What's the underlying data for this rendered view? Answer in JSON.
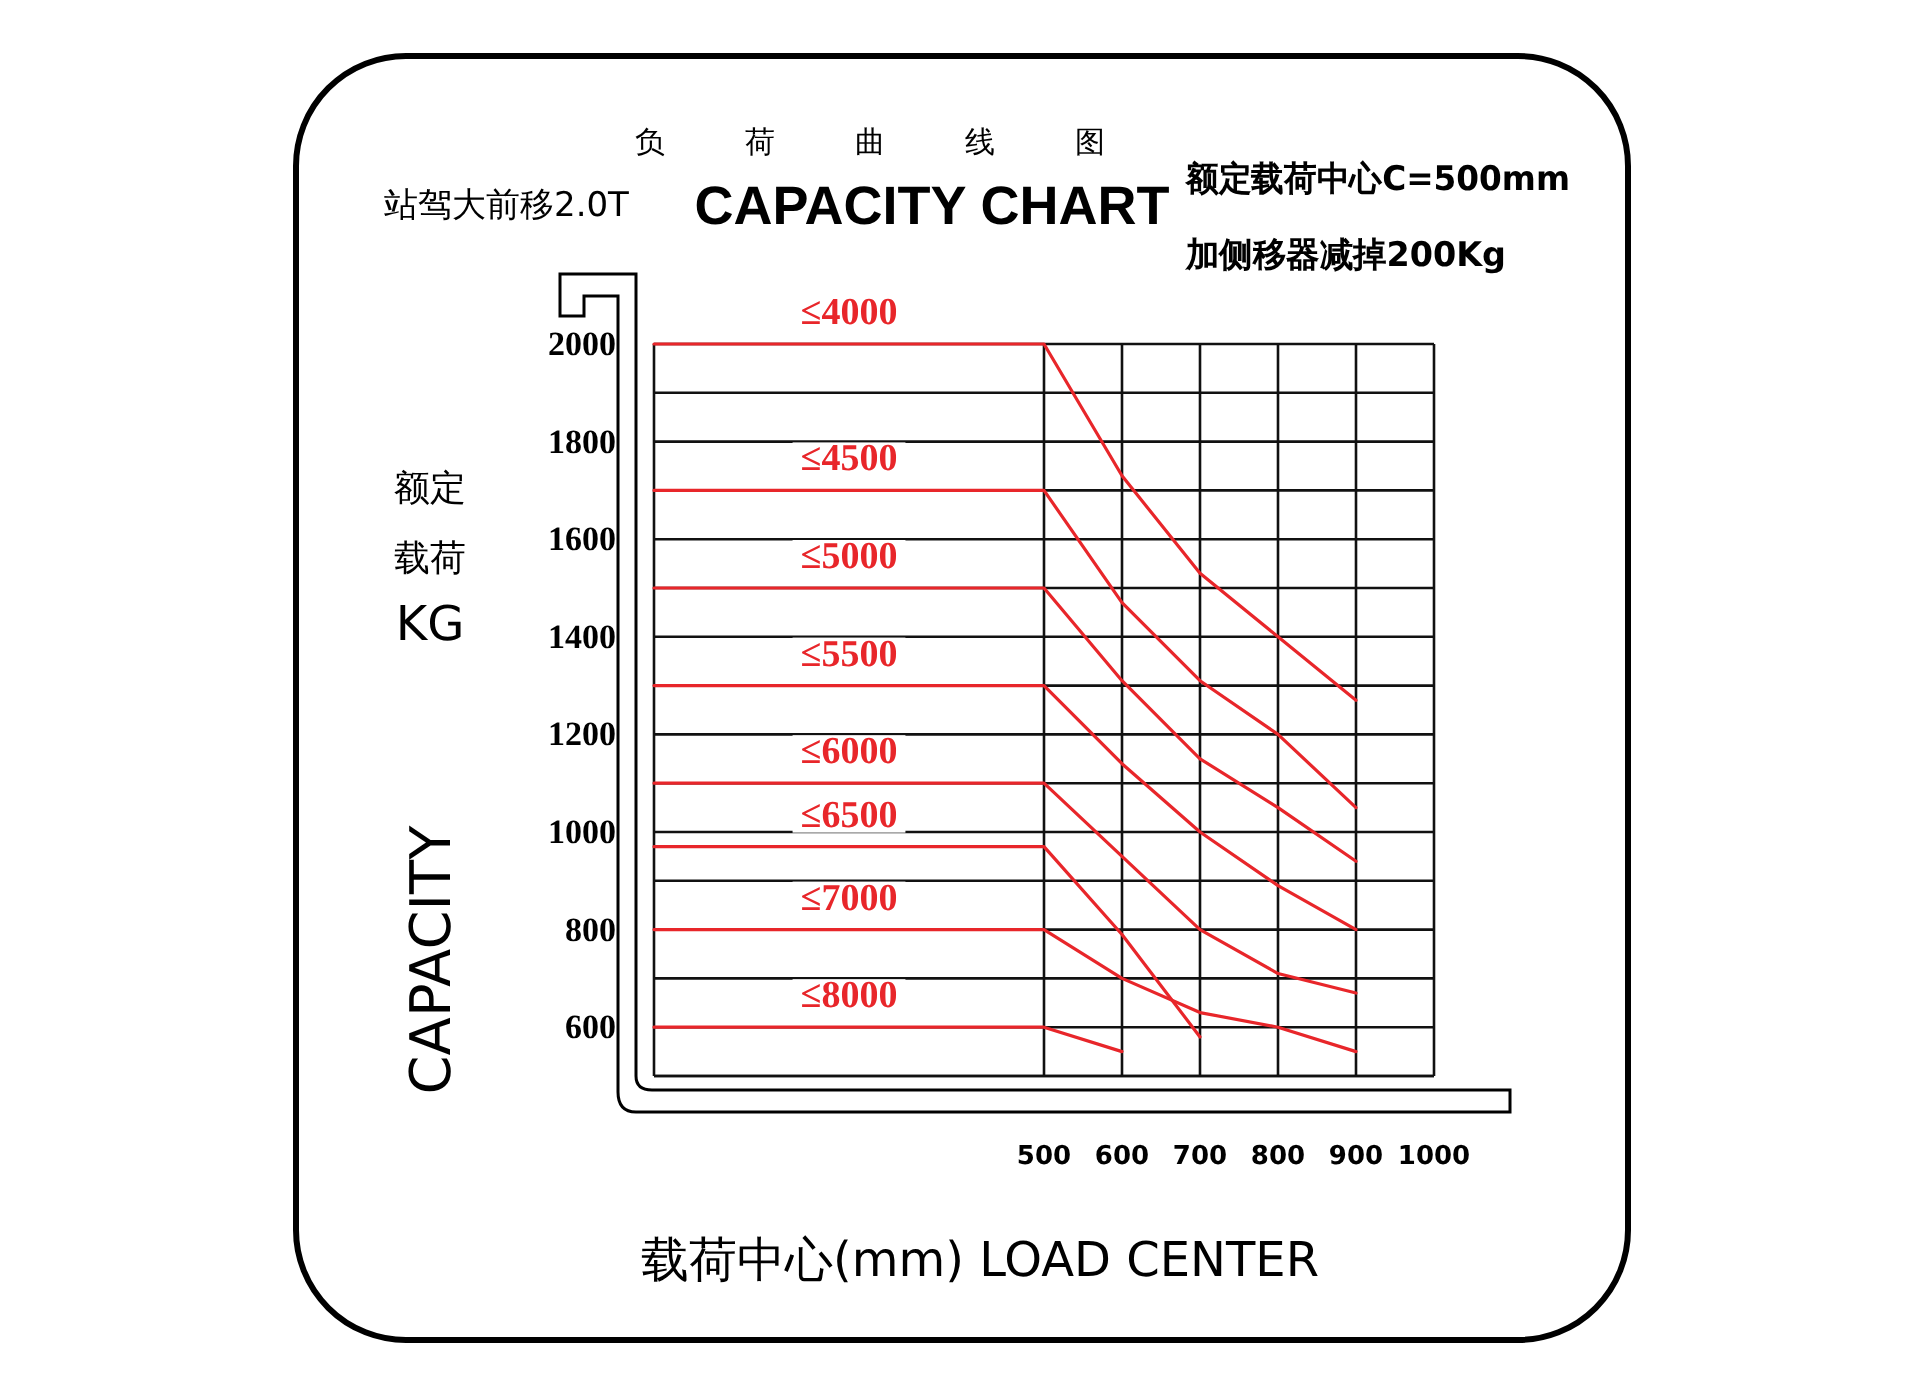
{
  "chart_data": {
    "type": "line",
    "title": "CAPACITY CHART",
    "subtitle": "负荷曲线图",
    "xlabel": "载荷中心(mm) LOAD CENTER",
    "ylabel": "额定载荷KG",
    "annotations": [
      "站驾大前移2.0T",
      "额定载荷中心C=500mm",
      "加侧移器减掉200Kg",
      "CAPACITY"
    ],
    "x": [
      0,
      500,
      600,
      700,
      800,
      900
    ],
    "xlim": [
      0,
      1000
    ],
    "xticks": [
      500,
      600,
      700,
      800,
      900,
      1000
    ],
    "ylim": [
      500,
      2000
    ],
    "yticks": [
      {
        "value": 500,
        "label": null
      },
      600,
      {
        "value": 700,
        "label": null
      },
      800,
      {
        "value": 900,
        "label": null
      },
      1000,
      {
        "value": 1100,
        "label": null
      },
      1200,
      {
        "value": 1300,
        "label": null
      },
      1400,
      {
        "value": 1500,
        "label": null
      },
      1600,
      {
        "value": 1700,
        "label": null
      },
      1800,
      {
        "value": 1900,
        "label": null
      },
      2000
    ],
    "grid": true,
    "marker": "none",
    "line_style": "solid",
    "series": [
      {
        "name": "≤4000",
        "color": "#e8262a",
        "values": [
          2000,
          2000,
          1730,
          1530,
          1400,
          1270
        ]
      },
      {
        "name": "≤4500",
        "color": "#e8262a",
        "values": [
          1700,
          1700,
          1470,
          1310,
          1200,
          1050
        ]
      },
      {
        "name": "≤5000",
        "color": "#e8262a",
        "values": [
          1500,
          1500,
          1310,
          1150,
          1050,
          940
        ]
      },
      {
        "name": "≤5500",
        "color": "#e8262a",
        "values": [
          1300,
          1300,
          1140,
          1000,
          890,
          800
        ]
      },
      {
        "name": "≤6000",
        "color": "#e8262a",
        "values": [
          1100,
          1100,
          950,
          800,
          710,
          670
        ]
      },
      {
        "name": "≤6500",
        "color": "#e8262a",
        "values": [
          970,
          970,
          790,
          580,
          null,
          null
        ]
      },
      {
        "name": "≤7000",
        "color": "#e8262a",
        "values": [
          800,
          800,
          700,
          630,
          600,
          550
        ]
      },
      {
        "name": "≤8000",
        "color": "#e8262a",
        "values": [
          600,
          600,
          550,
          null,
          null,
          null
        ]
      }
    ]
  }
}
